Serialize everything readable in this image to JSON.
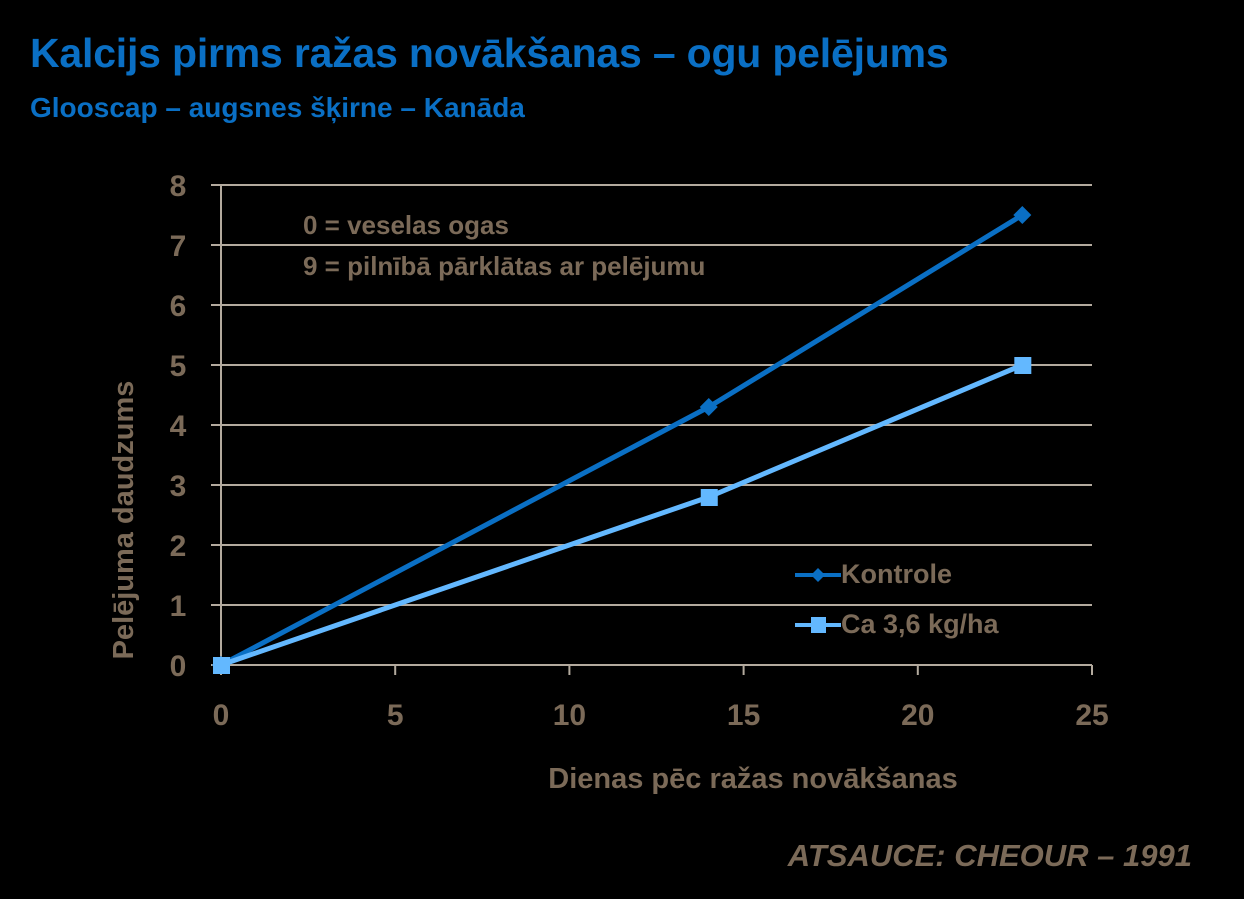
{
  "header": {
    "title": "Kalcijs pirms ražas novākšanas – ogu pelējums",
    "subtitle": "Glooscap – augsnes šķirne – Kanāda"
  },
  "annotation": {
    "line1": "0 = veselas ogas",
    "line2": "9 = pilnībā pārklātas ar pelējumu"
  },
  "source": "ATSAUCE: CHEOUR – 1991",
  "colors": {
    "title": "#0a6fc4",
    "text": "#7b6a58",
    "grid": "#b3aa9e",
    "kontrole": "#0a6fc4",
    "ca": "#63b8ff",
    "background": "#000000"
  },
  "chart_data": {
    "type": "line",
    "title": "Kalcijs pirms ražas novākšanas – ogu pelējums",
    "subtitle": "Glooscap – augsnes šķirne – Kanāda",
    "xlabel": "Dienas pēc ražas novākšanas",
    "ylabel": "Pelējuma daudzums",
    "xlim": [
      0,
      25
    ],
    "ylim": [
      0,
      8
    ],
    "xticks": [
      0,
      5,
      10,
      15,
      20,
      25
    ],
    "yticks": [
      0,
      1,
      2,
      3,
      4,
      5,
      6,
      7,
      8
    ],
    "grid": "horizontal",
    "legend_position": "lower right inside",
    "series": [
      {
        "name": "Kontrole",
        "marker": "diamond",
        "color": "#0a6fc4",
        "points": [
          {
            "x": 0,
            "y": 0
          },
          {
            "x": 14,
            "y": 4.3
          },
          {
            "x": 23,
            "y": 7.5
          }
        ]
      },
      {
        "name": "Ca 3,6 kg/ha",
        "marker": "square",
        "color": "#63b8ff",
        "points": [
          {
            "x": 0,
            "y": 0
          },
          {
            "x": 14,
            "y": 2.8
          },
          {
            "x": 23,
            "y": 5.0
          }
        ]
      }
    ],
    "annotations": [
      "0 = veselas ogas",
      "9 = pilnībā pārklātas ar pelējumu"
    ],
    "source": "ATSAUCE: CHEOUR – 1991"
  }
}
